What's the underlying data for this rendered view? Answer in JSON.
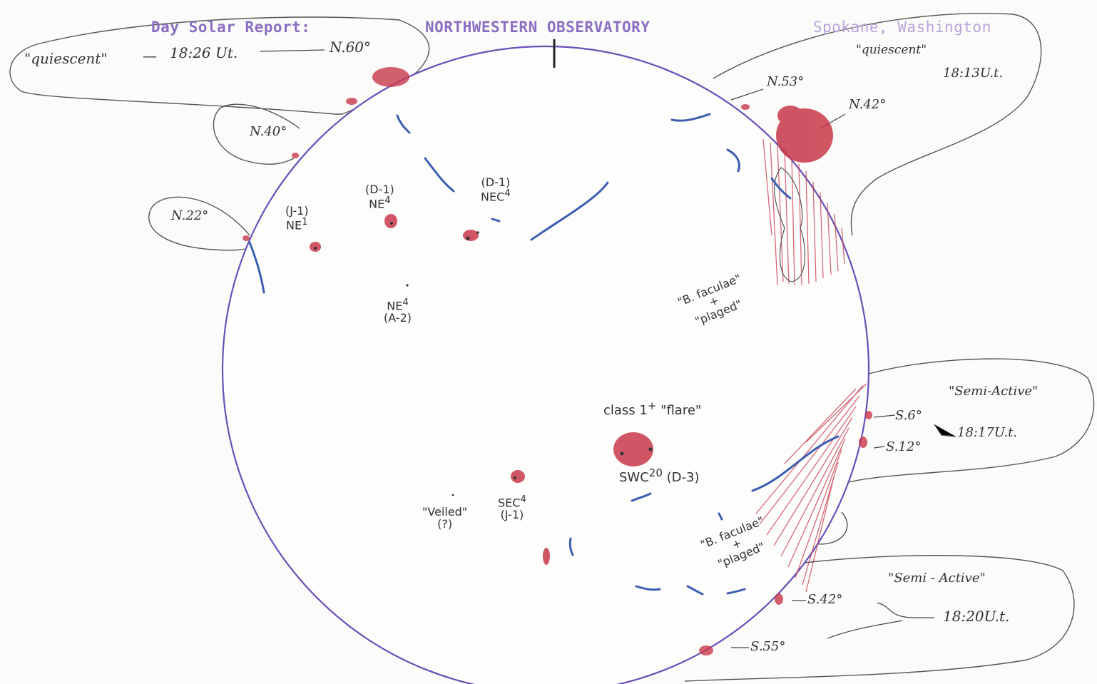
{
  "header": {
    "report": "Day Solar Report:",
    "observatory": "NORTHWESTERN OBSERVATORY",
    "location": "Spokane, Washington"
  },
  "callouts": {
    "nw_top": {
      "state": "\"quiescent\"",
      "time": "18:26 Ut.",
      "lat": "N.60°"
    },
    "n40": {
      "lat": "N.40°"
    },
    "n22": {
      "lat": "N.22°"
    },
    "ne": {
      "n53": "N.53°",
      "state": "\"quiescent\"",
      "n42": "N.42°",
      "time": "18:13U.t."
    },
    "se_upper": {
      "state": "\"Semi-Active\"",
      "s6": "S.6°",
      "s12": "S.12°",
      "time": "18:17U.t."
    },
    "se_lower": {
      "state": "\"Semi - Active\"",
      "s42": "S.42°",
      "s55": "S.55°",
      "time": "18:20U.t."
    }
  },
  "groups": {
    "g1": {
      "line1": "(J-1)",
      "line2": "NE",
      "sup": "1"
    },
    "g2": {
      "line1": "(D-1)",
      "line2": "NE",
      "sup": "4"
    },
    "g3": {
      "line1": "(D-1)",
      "line2": "NEC",
      "sup": "4"
    },
    "g4": {
      "line1": "NE",
      "sup": "4",
      "line2": "(A-2)"
    },
    "flare": {
      "line1": "class 1",
      "sup": "+",
      "line2": "\"flare\"",
      "line3": "SWC",
      "sup3": "20",
      "line4": "(D-3)"
    },
    "sec": {
      "line1": "SEC",
      "sup": "4",
      "line2": "(J-1)"
    },
    "veiled": {
      "line1": "\"Veiled\"",
      "line2": "(?)"
    }
  },
  "faculae": {
    "north": {
      "line1": "\"B. faculae\"",
      "line2": "+",
      "line3": "\"plaged\""
    },
    "south": {
      "line1": "\"B. faculae\"",
      "line2": "+",
      "line3": "\"plaged\""
    }
  },
  "colors": {
    "limb": "#6a4fb8",
    "plage": "#c8384a",
    "filament": "#3d5db0",
    "pencil": "#555555",
    "header": "#8a6fc2"
  }
}
